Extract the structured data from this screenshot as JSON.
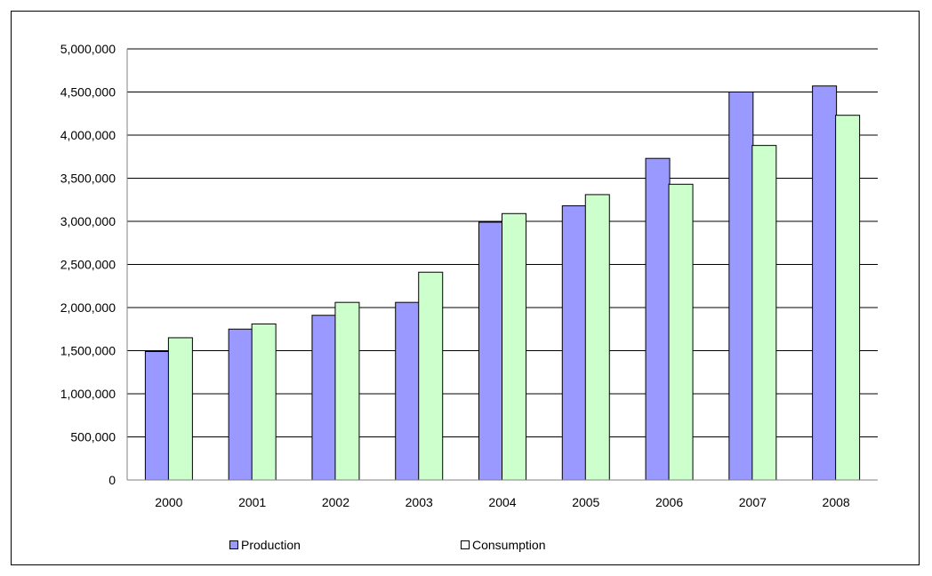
{
  "chart_data": {
    "type": "bar",
    "title": "",
    "xlabel": "",
    "ylabel": "",
    "categories": [
      "2000",
      "2001",
      "2002",
      "2003",
      "2004",
      "2005",
      "2006",
      "2007",
      "2008"
    ],
    "series": [
      {
        "name": "Production",
        "color": "#9999ff",
        "values": [
          1490000,
          1750000,
          1910000,
          2060000,
          2990000,
          3180000,
          3730000,
          4500000,
          4570000
        ]
      },
      {
        "name": "Consumption",
        "color": "#ccffcc",
        "values": [
          1650000,
          1810000,
          2060000,
          2410000,
          3090000,
          3310000,
          3430000,
          3880000,
          4230000
        ]
      }
    ],
    "ylim": [
      0,
      5000000
    ],
    "yticks": [
      "0",
      "500,000",
      "1,000,000",
      "1,500,000",
      "2,000,000",
      "2,500,000",
      "3,000,000",
      "3,500,000",
      "4,000,000",
      "4,500,000",
      "5,000,000"
    ],
    "grid": true,
    "legend_position": "bottom"
  }
}
